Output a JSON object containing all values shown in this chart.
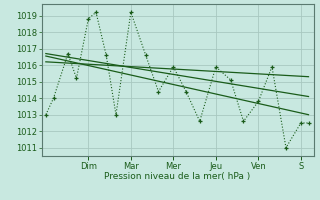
{
  "bg_color": "#c8e8e0",
  "grid_color": "#a8c8c0",
  "line_color": "#1a5c1a",
  "xlabel": "Pression niveau de la mer( hPa )",
  "ylim": [
    1010.5,
    1019.7
  ],
  "yticks": [
    1011,
    1012,
    1013,
    1014,
    1015,
    1016,
    1017,
    1018,
    1019
  ],
  "day_labels": [
    "Dim",
    "Mar",
    "Mer",
    "Jeu",
    "Ven",
    "S"
  ],
  "day_positions": [
    1.0,
    2.0,
    3.0,
    4.0,
    5.0,
    6.0
  ],
  "xlim": [
    -0.1,
    6.3
  ],
  "main_x": [
    0.0,
    0.18,
    0.52,
    0.72,
    1.0,
    1.18,
    1.42,
    1.65,
    2.0,
    2.35,
    2.65,
    3.0,
    3.3,
    3.62,
    4.0,
    4.35,
    4.65,
    5.0,
    5.32,
    5.65,
    6.0,
    6.18
  ],
  "main_y": [
    1013.0,
    1014.0,
    1016.7,
    1015.2,
    1018.8,
    1019.2,
    1016.6,
    1013.0,
    1019.2,
    1016.6,
    1014.4,
    1015.9,
    1014.4,
    1012.6,
    1015.9,
    1015.1,
    1012.6,
    1013.8,
    1015.9,
    1011.0,
    1012.5,
    1012.5
  ],
  "trend_lines": [
    {
      "x": [
        0.0,
        6.18
      ],
      "y": [
        1016.55,
        1013.0
      ]
    },
    {
      "x": [
        0.0,
        6.18
      ],
      "y": [
        1016.7,
        1014.1
      ]
    },
    {
      "x": [
        0.0,
        6.18
      ],
      "y": [
        1016.2,
        1015.3
      ]
    }
  ]
}
